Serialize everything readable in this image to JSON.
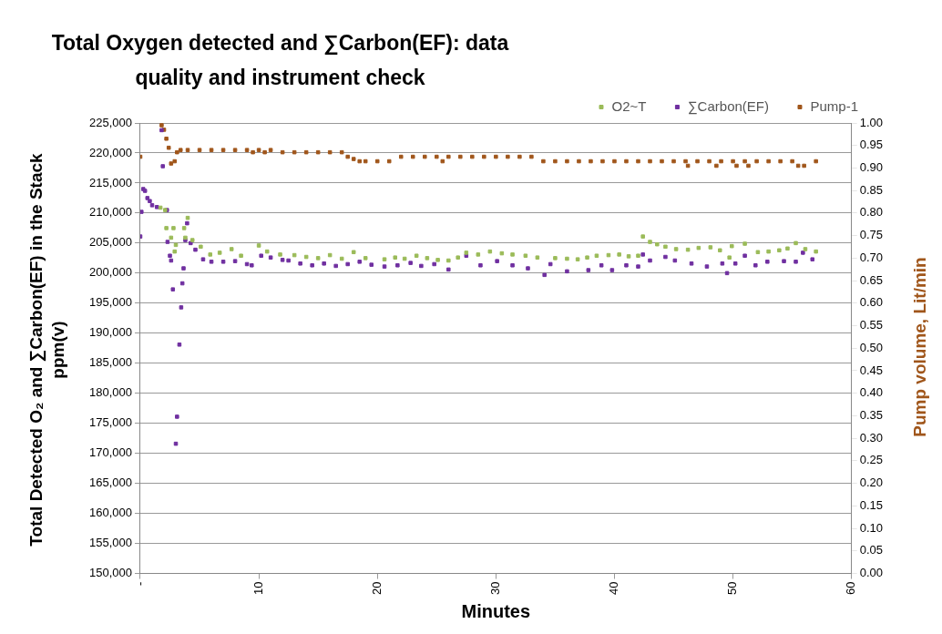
{
  "chart_data": {
    "type": "scatter",
    "title": "Total Oxygen detected and ∑Carbon(EF): data quality and instrument check",
    "xlabel": "Minutes",
    "ylabel": "Total Detected O₂ and ∑Carbon(EF) in the Stack ppm(v)",
    "y2label": "Pump volume, Lit/min",
    "xlim": [
      0,
      60
    ],
    "xticks": [
      {
        "value": 0,
        "label": "-"
      },
      10,
      20,
      30,
      40,
      50,
      60
    ],
    "ylim": [
      150000,
      225000
    ],
    "yticks": [
      {
        "value": 150000,
        "label": "150,000"
      },
      {
        "value": 155000,
        "label": "155,000"
      },
      {
        "value": 160000,
        "label": "160,000"
      },
      {
        "value": 165000,
        "label": "165,000"
      },
      {
        "value": 170000,
        "label": "170,000"
      },
      {
        "value": 175000,
        "label": "175,000"
      },
      {
        "value": 180000,
        "label": "180,000"
      },
      {
        "value": 185000,
        "label": "185,000"
      },
      {
        "value": 190000,
        "label": "190,000"
      },
      {
        "value": 195000,
        "label": "195,000"
      },
      {
        "value": 200000,
        "label": "200,000"
      },
      {
        "value": 205000,
        "label": "205,000"
      },
      {
        "value": 210000,
        "label": "210,000"
      },
      {
        "value": 215000,
        "label": "215,000"
      },
      {
        "value": 220000,
        "label": "220,000"
      },
      {
        "value": 225000,
        "label": "225,000"
      }
    ],
    "y2lim": [
      0,
      1
    ],
    "y2ticks": [
      {
        "value": 0,
        "label": "0.00"
      },
      {
        "value": 0.05,
        "label": "0.05"
      },
      {
        "value": 0.1,
        "label": "0.10"
      },
      {
        "value": 0.15,
        "label": "0.15"
      },
      {
        "value": 0.2,
        "label": "0.20"
      },
      {
        "value": 0.25,
        "label": "0.25"
      },
      {
        "value": 0.3,
        "label": "0.30"
      },
      {
        "value": 0.35,
        "label": "0.35"
      },
      {
        "value": 0.4,
        "label": "0.40"
      },
      {
        "value": 0.45,
        "label": "0.45"
      },
      {
        "value": 0.5,
        "label": "0.50"
      },
      {
        "value": 0.55,
        "label": "0.55"
      },
      {
        "value": 0.6,
        "label": "0.60"
      },
      {
        "value": 0.65,
        "label": "0.65"
      },
      {
        "value": 0.7,
        "label": "0.70"
      },
      {
        "value": 0.75,
        "label": "0.75"
      },
      {
        "value": 0.8,
        "label": "0.80"
      },
      {
        "value": 0.85,
        "label": "0.85"
      },
      {
        "value": 0.9,
        "label": "0.90"
      },
      {
        "value": 0.95,
        "label": "0.95"
      },
      {
        "value": 1,
        "label": "1.00"
      }
    ],
    "grid": "y",
    "legend": "top right",
    "marker": "square",
    "series": [
      {
        "name": "O2~T",
        "color": "#9bbb59",
        "x": [
          1.7,
          2.1,
          2.2,
          2.6,
          2.8,
          2.9,
          3.0,
          3.7,
          3.8,
          4.0,
          4.4,
          5.1,
          5.9,
          6.7,
          7.7,
          8.5,
          10.0,
          10.7,
          11.8,
          13,
          14,
          15,
          16,
          17,
          18,
          19,
          20.6,
          21.5,
          22.3,
          23.3,
          24.2,
          25.1,
          26.0,
          26.8,
          27.5,
          28.5,
          29.5,
          30.5,
          31.4,
          32.5,
          33.5,
          35.0,
          36.0,
          36.9,
          37.7,
          38.5,
          39.5,
          40.4,
          41.2,
          42.0,
          42.4,
          43.0,
          43.6,
          44.3,
          45.2,
          46.2,
          47.1,
          48.1,
          48.9,
          49.7,
          49.9,
          51.0,
          52.1,
          53.0,
          53.9,
          54.6,
          55.3,
          56.1,
          57.0
        ],
        "values": [
          210900,
          210500,
          207500,
          205900,
          207500,
          203600,
          204700,
          207500,
          205900,
          209200,
          205500,
          204400,
          203100,
          203400,
          204000,
          202900,
          204600,
          203600,
          203100,
          203000,
          202700,
          202500,
          203000,
          202400,
          203500,
          202500,
          202300,
          202600,
          202400,
          202900,
          202500,
          202200,
          202100,
          202600,
          203400,
          203100,
          203600,
          203300,
          203100,
          202900,
          202600,
          202500,
          202400,
          202300,
          202600,
          202900,
          203000,
          203100,
          202800,
          202900,
          206100,
          205200,
          204800,
          204400,
          204000,
          203900,
          204200,
          204300,
          203800,
          202600,
          204500,
          204900,
          203500,
          203600,
          203800,
          204100,
          205000,
          204000,
          203600
        ]
      },
      {
        "name": "∑Carbon(EF)",
        "color": "#7030a0",
        "x": [
          0,
          0.1,
          0.25,
          0.4,
          0.6,
          0.8,
          1.0,
          1.4,
          1.8,
          1.9,
          2.25,
          2.3,
          2.5,
          2.6,
          2.75,
          3.0,
          3.1,
          3.3,
          3.45,
          3.55,
          3.65,
          3.8,
          3.95,
          4.25,
          4.65,
          5.3,
          6,
          7,
          8,
          9,
          9.4,
          10.2,
          11,
          12,
          12.5,
          13.5,
          14.5,
          15.5,
          16.5,
          17.5,
          18.5,
          19.5,
          20.6,
          21.7,
          22.8,
          23.7,
          24.8,
          26.0,
          27.5,
          28.7,
          30.1,
          31.4,
          32.7,
          34.1,
          34.6,
          36.0,
          37.8,
          38.9,
          39.8,
          41.0,
          42.0,
          42.4,
          43.0,
          44.3,
          45.1,
          46.5,
          47.8,
          49.1,
          49.5,
          50.2,
          51.0,
          51.9,
          52.9,
          54.3,
          55.3,
          55.9,
          56.7
        ],
        "values": [
          206100,
          210200,
          214000,
          213700,
          212500,
          212000,
          211300,
          211000,
          223800,
          217800,
          210500,
          205200,
          202900,
          202100,
          197300,
          171600,
          176100,
          188100,
          194300,
          198300,
          200800,
          205500,
          208300,
          205000,
          203900,
          202300,
          201900,
          201900,
          202000,
          201500,
          201300,
          202900,
          202600,
          202200,
          202100,
          201600,
          201300,
          201600,
          201200,
          201500,
          201900,
          201400,
          201100,
          201300,
          201700,
          201200,
          201500,
          200600,
          202900,
          201300,
          202000,
          201300,
          200800,
          199700,
          201500,
          200300,
          200500,
          201300,
          200500,
          201300,
          201100,
          203100,
          202100,
          202700,
          202100,
          201600,
          201100,
          201600,
          200000,
          201600,
          202900,
          201300,
          201900,
          202000,
          201900,
          203400,
          202300
        ]
      },
      {
        "name": "Pump-1",
        "color": "#a0561b",
        "axis": "y2",
        "x": [
          0,
          1.8,
          2.0,
          2.2,
          2.4,
          2.6,
          2.9,
          3.1,
          3.4,
          4,
          5,
          6,
          7,
          8,
          9,
          9.5,
          10,
          10.5,
          11,
          12,
          13,
          14,
          15,
          16,
          17,
          17.5,
          18,
          18.5,
          19,
          20,
          21,
          22,
          23,
          24,
          25,
          25.5,
          26,
          27,
          28,
          29,
          30,
          31,
          32,
          33,
          34,
          35,
          36,
          37,
          38,
          39,
          40,
          41,
          42,
          43,
          44,
          45,
          46,
          46.2,
          47,
          48,
          48.6,
          49,
          50,
          50.3,
          51,
          51.3,
          52,
          53,
          54,
          55,
          55.5,
          56,
          57
        ],
        "values": [
          0.925,
          0.995,
          0.985,
          0.965,
          0.945,
          0.91,
          0.915,
          0.935,
          0.94,
          0.94,
          0.94,
          0.94,
          0.94,
          0.94,
          0.94,
          0.935,
          0.94,
          0.935,
          0.94,
          0.935,
          0.935,
          0.935,
          0.935,
          0.935,
          0.935,
          0.925,
          0.92,
          0.915,
          0.915,
          0.915,
          0.915,
          0.925,
          0.925,
          0.925,
          0.925,
          0.915,
          0.925,
          0.925,
          0.925,
          0.925,
          0.925,
          0.925,
          0.925,
          0.925,
          0.915,
          0.915,
          0.915,
          0.915,
          0.915,
          0.915,
          0.915,
          0.915,
          0.915,
          0.915,
          0.915,
          0.915,
          0.915,
          0.905,
          0.915,
          0.915,
          0.905,
          0.915,
          0.915,
          0.905,
          0.915,
          0.905,
          0.915,
          0.915,
          0.915,
          0.915,
          0.905,
          0.905,
          0.915
        ]
      }
    ]
  }
}
